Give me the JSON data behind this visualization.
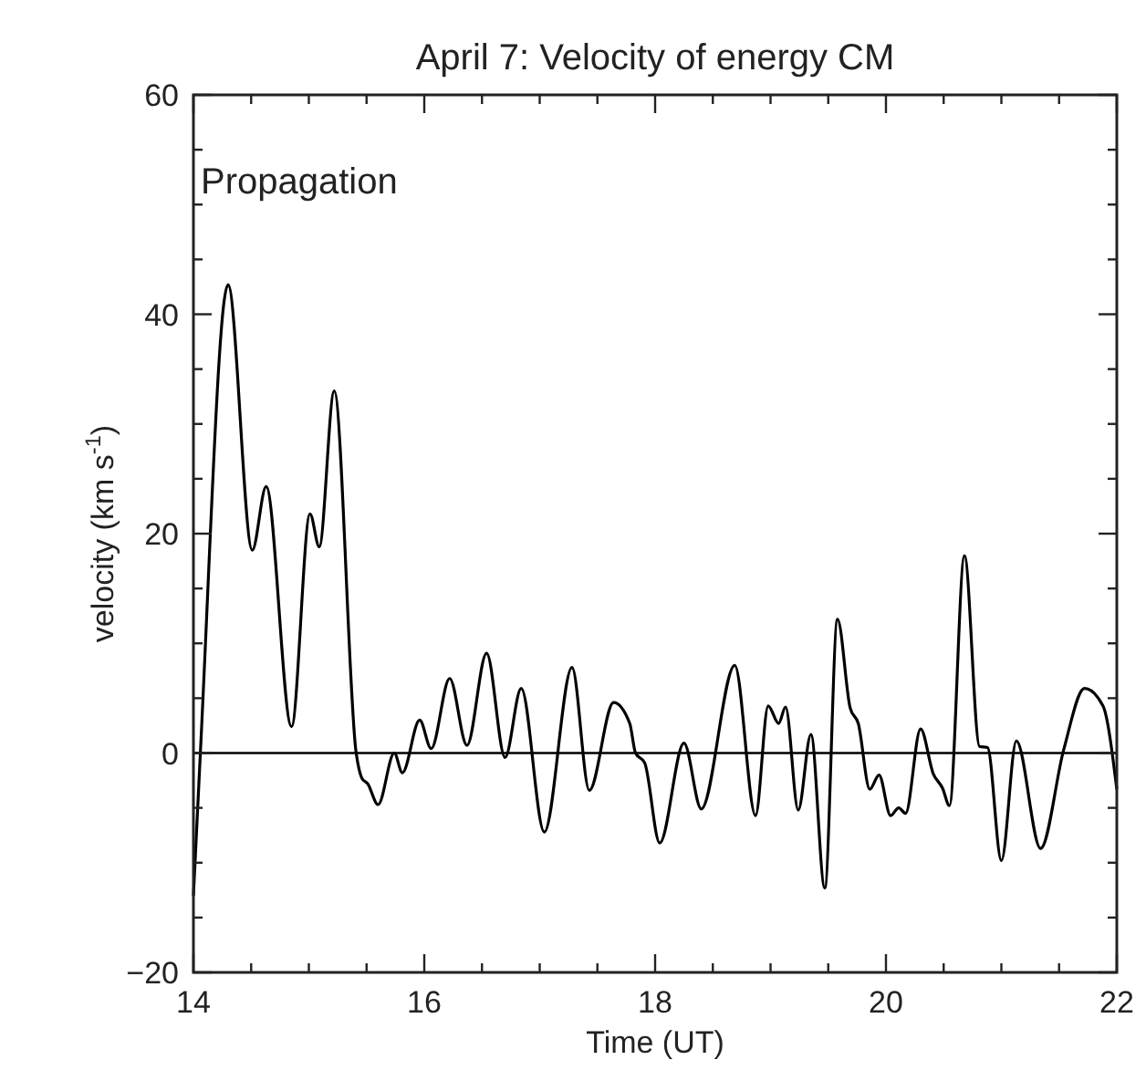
{
  "chart_data": {
    "type": "line",
    "title": "April 7: Velocity of energy CM",
    "xlabel": "Time (UT)",
    "ylabel": "velocity (km s$^{-1}$)",
    "annotations": [
      "Propagation"
    ],
    "xlim": [
      14,
      22
    ],
    "ylim": [
      -20,
      60
    ],
    "xticks": [
      14,
      {
        "value": 14.5,
        "label": null
      },
      {
        "value": 15,
        "label": null
      },
      {
        "value": 15.5,
        "label": null
      },
      16,
      {
        "value": 16.5,
        "label": null
      },
      {
        "value": 17,
        "label": null
      },
      {
        "value": 17.5,
        "label": null
      },
      18,
      {
        "value": 18.5,
        "label": null
      },
      {
        "value": 19,
        "label": null
      },
      {
        "value": 19.5,
        "label": null
      },
      20,
      {
        "value": 20.5,
        "label": null
      },
      {
        "value": 21,
        "label": null
      },
      {
        "value": 21.5,
        "label": null
      },
      22
    ],
    "yticks": [
      -20,
      {
        "value": -15,
        "label": null
      },
      {
        "value": -10,
        "label": null
      },
      {
        "value": -5,
        "label": null
      },
      0,
      {
        "value": 5,
        "label": null
      },
      {
        "value": 10,
        "label": null
      },
      {
        "value": 15,
        "label": null
      },
      20,
      {
        "value": 25,
        "label": null
      },
      {
        "value": 30,
        "label": null
      },
      {
        "value": 35,
        "label": null
      },
      40,
      {
        "value": 45,
        "label": null
      },
      {
        "value": 50,
        "label": null
      },
      {
        "value": 55,
        "label": null
      },
      60
    ],
    "ref_lines": [
      {
        "axis": "y",
        "value": 0,
        "color": "#000000"
      }
    ],
    "grid": false,
    "marker": "none",
    "line_style": "solid",
    "series": [
      {
        "color": "#000000",
        "x": [
          14.0,
          14.06,
          14.3,
          14.51,
          14.63,
          14.85,
          15.01,
          15.09,
          15.22,
          15.41,
          15.46,
          15.51,
          15.6,
          15.74,
          15.81,
          15.96,
          16.06,
          16.22,
          16.37,
          16.54,
          16.7,
          16.84,
          17.04,
          17.28,
          17.43,
          17.64,
          17.78,
          17.83,
          17.91,
          18.04,
          18.25,
          18.4,
          18.69,
          18.87,
          18.98,
          19.07,
          19.13,
          19.24,
          19.35,
          19.47,
          19.58,
          19.69,
          19.76,
          19.86,
          19.94,
          20.04,
          20.11,
          20.17,
          20.3,
          20.41,
          20.49,
          20.55,
          20.68,
          20.81,
          20.88,
          21.0,
          21.13,
          21.34,
          21.54,
          21.72,
          21.88,
          22.0
        ],
        "values": [
          -13,
          0,
          42.7,
          18.5,
          24.3,
          2.4,
          21.8,
          18.8,
          33,
          0,
          -2.3,
          -2.8,
          -4.7,
          0,
          -1.8,
          3,
          0.4,
          6.8,
          0.7,
          9.1,
          -0.4,
          5.9,
          -7.2,
          7.8,
          -3.4,
          4.6,
          2.7,
          0,
          -0.9,
          -8.2,
          0.9,
          -5.1,
          8,
          -5.7,
          4.3,
          2.7,
          4.2,
          -5.2,
          1.7,
          -12.3,
          12.2,
          4.1,
          2.7,
          -3.3,
          -2,
          -5.7,
          -5,
          -5.5,
          2.2,
          -1.9,
          -3.2,
          -4.8,
          18,
          0.6,
          0.5,
          -9.8,
          1.1,
          -8.7,
          0.3,
          5.9,
          4.3,
          -3.3
        ]
      }
    ]
  }
}
